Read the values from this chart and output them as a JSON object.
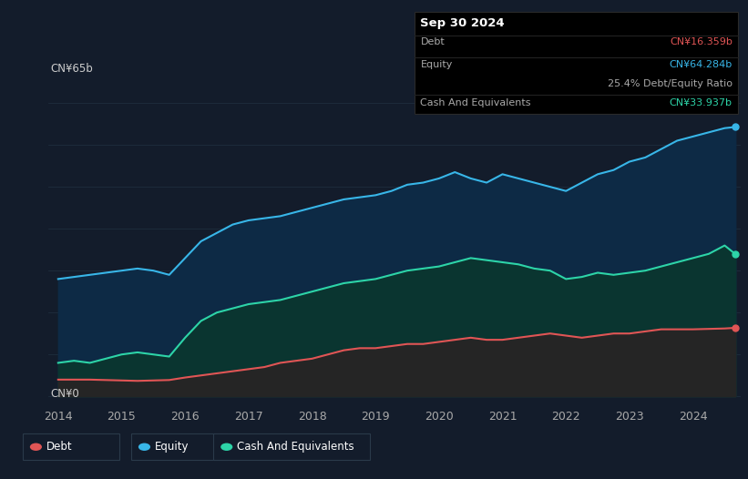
{
  "background_color": "#131c2b",
  "plot_bg_color": "#131c2b",
  "ylabel_top": "CN¥65b",
  "ylabel_bottom": "CN¥0",
  "xlabel_years": [
    "2014",
    "2015",
    "2016",
    "2017",
    "2018",
    "2019",
    "2020",
    "2021",
    "2022",
    "2023",
    "2024"
  ],
  "tooltip": {
    "date": "Sep 30 2024",
    "debt_label": "Debt",
    "debt_value": "CN¥16.359b",
    "debt_color": "#e05555",
    "equity_label": "Equity",
    "equity_value": "CN¥64.284b",
    "equity_color": "#38b6e8",
    "ratio_text": "25.4% Debt/Equity Ratio",
    "ratio_value_color": "#ffffff",
    "ratio_rest_color": "#aaaaaa",
    "cash_label": "Cash And Equivalents",
    "cash_value": "CN¥33.937b",
    "cash_color": "#2dd4a8",
    "bg": "#000000",
    "text_color": "#aaaaaa"
  },
  "legend": [
    {
      "label": "Debt",
      "color": "#e05555"
    },
    {
      "label": "Equity",
      "color": "#38b6e8"
    },
    {
      "label": "Cash And Equivalents",
      "color": "#2dd4a8"
    }
  ],
  "equity_color": "#38b6e8",
  "equity_fill": "#0d2a45",
  "debt_color": "#e05555",
  "debt_fill": "#252525",
  "cash_color": "#2dd4a8",
  "cash_fill": "#0a3530",
  "grid_color": "#1e2d3d",
  "years": [
    2014.0,
    2014.25,
    2014.5,
    2014.75,
    2015.0,
    2015.25,
    2015.5,
    2015.75,
    2016.0,
    2016.25,
    2016.5,
    2016.75,
    2017.0,
    2017.25,
    2017.5,
    2017.75,
    2018.0,
    2018.25,
    2018.5,
    2018.75,
    2019.0,
    2019.25,
    2019.5,
    2019.75,
    2020.0,
    2020.25,
    2020.5,
    2020.75,
    2021.0,
    2021.25,
    2021.5,
    2021.75,
    2022.0,
    2022.25,
    2022.5,
    2022.75,
    2023.0,
    2023.25,
    2023.5,
    2023.75,
    2024.0,
    2024.25,
    2024.5,
    2024.67
  ],
  "equity": [
    28,
    28.5,
    29,
    29.5,
    30,
    30.5,
    30,
    29,
    33,
    37,
    39,
    41,
    42,
    42.5,
    43,
    44,
    45,
    46,
    47,
    47.5,
    48,
    49,
    50.5,
    51,
    52,
    53.5,
    52,
    51,
    53,
    52,
    51,
    50,
    49,
    51,
    53,
    54,
    56,
    57,
    59,
    61,
    62,
    63,
    64,
    64.284
  ],
  "cash": [
    8,
    8.5,
    8,
    9,
    10,
    10.5,
    10,
    9.5,
    14,
    18,
    20,
    21,
    22,
    22.5,
    23,
    24,
    25,
    26,
    27,
    27.5,
    28,
    29,
    30,
    30.5,
    31,
    32,
    33,
    32.5,
    32,
    31.5,
    30.5,
    30,
    28,
    28.5,
    29.5,
    29,
    29.5,
    30,
    31,
    32,
    33,
    34,
    36,
    33.937
  ],
  "debt": [
    4,
    4.0,
    4.0,
    3.9,
    3.8,
    3.7,
    3.8,
    3.9,
    4.5,
    5,
    5.5,
    6,
    6.5,
    7,
    8,
    8.5,
    9,
    10,
    11,
    11.5,
    11.5,
    12,
    12.5,
    12.5,
    13,
    13.5,
    14,
    13.5,
    13.5,
    14,
    14.5,
    15,
    14.5,
    14,
    14.5,
    15,
    15,
    15.5,
    16,
    16,
    16,
    16.1,
    16.2,
    16.359
  ]
}
